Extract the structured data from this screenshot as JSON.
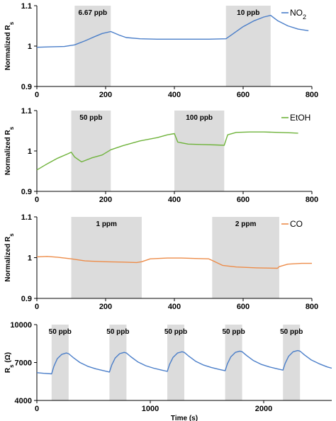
{
  "chart_data": [
    {
      "type": "line",
      "ylabel": "Normalized R",
      "ylabel_sub": "s",
      "xlim": [
        0,
        800
      ],
      "ylim": [
        0.9,
        1.1
      ],
      "xticks": [
        "0",
        "200",
        "400",
        "600",
        "800"
      ],
      "yticks": [
        "0.9",
        "1",
        "1.1"
      ],
      "legend": "NO",
      "legend_sub": "2",
      "legend_position": "top-right",
      "color": "#4a7ec9",
      "bands": [
        {
          "x0": 110,
          "x1": 215,
          "label": "6.67 ppb"
        },
        {
          "x0": 550,
          "x1": 680,
          "label": "10 ppb"
        }
      ],
      "series": [
        {
          "x": [
            0,
            40,
            80,
            110,
            140,
            170,
            190,
            215,
            240,
            260,
            300,
            350,
            400,
            450,
            500,
            550,
            570,
            600,
            630,
            660,
            680,
            700,
            730,
            760,
            790
          ],
          "y": [
            0.997,
            0.998,
            0.999,
            1.003,
            1.013,
            1.024,
            1.031,
            1.036,
            1.027,
            1.021,
            1.018,
            1.017,
            1.017,
            1.017,
            1.017,
            1.018,
            1.03,
            1.048,
            1.062,
            1.072,
            1.076,
            1.063,
            1.05,
            1.042,
            1.038
          ]
        }
      ]
    },
    {
      "type": "line",
      "ylabel": "Normalized R",
      "ylabel_sub": "s",
      "xlim": [
        0,
        800
      ],
      "ylim": [
        0.9,
        1.1
      ],
      "xticks": [
        "0",
        "200",
        "400",
        "600",
        "800"
      ],
      "yticks": [
        "0.9",
        "1",
        "1.1"
      ],
      "legend": "EtOH",
      "legend_sub": "",
      "legend_position": "top-right",
      "color": "#6fb33b",
      "bands": [
        {
          "x0": 100,
          "x1": 215,
          "label": "50 ppb"
        },
        {
          "x0": 400,
          "x1": 545,
          "label": "100 ppb"
        }
      ],
      "series": [
        {
          "x": [
            0,
            30,
            60,
            90,
            100,
            110,
            130,
            160,
            190,
            215,
            250,
            300,
            350,
            380,
            400,
            410,
            440,
            480,
            520,
            545,
            555,
            580,
            620,
            660,
            700,
            740,
            760
          ],
          "y": [
            0.953,
            0.968,
            0.982,
            0.993,
            0.997,
            0.985,
            0.973,
            0.983,
            0.99,
            1.003,
            1.013,
            1.025,
            1.033,
            1.04,
            1.043,
            1.022,
            1.017,
            1.016,
            1.015,
            1.014,
            1.04,
            1.046,
            1.047,
            1.047,
            1.046,
            1.045,
            1.044
          ]
        }
      ]
    },
    {
      "type": "line",
      "ylabel": "Normalized R",
      "ylabel_sub": "s",
      "xlim": [
        0,
        800
      ],
      "ylim": [
        0.9,
        1.1
      ],
      "xticks": [
        "0",
        "200",
        "400",
        "600",
        "800"
      ],
      "yticks": [
        "0.9",
        "1",
        "1.1"
      ],
      "legend": "CO",
      "legend_sub": "",
      "legend_position": "top-right",
      "color": "#ed8c49",
      "bands": [
        {
          "x0": 100,
          "x1": 305,
          "label": "1 ppm"
        },
        {
          "x0": 510,
          "x1": 705,
          "label": "2 ppm"
        }
      ],
      "series": [
        {
          "x": [
            0,
            30,
            60,
            100,
            140,
            200,
            250,
            290,
            305,
            330,
            380,
            420,
            460,
            500,
            510,
            540,
            580,
            640,
            700,
            705,
            730,
            770,
            800
          ],
          "y": [
            1.002,
            1.003,
            1.001,
            0.997,
            0.992,
            0.99,
            0.989,
            0.988,
            0.99,
            0.997,
            0.999,
            0.999,
            0.998,
            0.997,
            0.993,
            0.981,
            0.977,
            0.975,
            0.974,
            0.978,
            0.984,
            0.986,
            0.986
          ]
        }
      ]
    },
    {
      "type": "line",
      "ylabel": "R",
      "ylabel_sub": "s",
      "ylabel_suffix": " (Ω)",
      "xlabel": "Time (s)",
      "xlim": [
        0,
        2600
      ],
      "ylim": [
        4000,
        10000
      ],
      "xticks": [
        "0",
        "1000",
        "2000"
      ],
      "yticks": [
        "4000",
        "7000",
        "10000"
      ],
      "legend": "",
      "legend_sub": "",
      "color": "#4a7ec9",
      "bands": [
        {
          "x0": 130,
          "x1": 280,
          "label": "50 ppb"
        },
        {
          "x0": 640,
          "x1": 790,
          "label": "50 ppb"
        },
        {
          "x0": 1150,
          "x1": 1300,
          "label": "50 ppb"
        },
        {
          "x0": 1660,
          "x1": 1810,
          "label": "50 ppb"
        },
        {
          "x0": 2170,
          "x1": 2320,
          "label": "50 ppb"
        }
      ],
      "series": [
        {
          "x": [
            0,
            60,
            130,
            150,
            180,
            220,
            260,
            280,
            320,
            380,
            450,
            520,
            590,
            640,
            660,
            690,
            730,
            770,
            790,
            830,
            890,
            960,
            1030,
            1100,
            1150,
            1170,
            1200,
            1240,
            1280,
            1300,
            1340,
            1400,
            1470,
            1540,
            1610,
            1660,
            1680,
            1710,
            1750,
            1790,
            1810,
            1850,
            1910,
            1980,
            2050,
            2120,
            2170,
            2190,
            2220,
            2260,
            2300,
            2320,
            2360,
            2420,
            2490,
            2560,
            2600
          ],
          "y": [
            6200,
            6150,
            6100,
            6700,
            7300,
            7650,
            7750,
            7700,
            7400,
            7000,
            6700,
            6500,
            6350,
            6250,
            6800,
            7350,
            7700,
            7800,
            7750,
            7450,
            7050,
            6750,
            6550,
            6400,
            6300,
            6850,
            7400,
            7750,
            7850,
            7800,
            7500,
            7100,
            6800,
            6600,
            6450,
            6350,
            6900,
            7450,
            7800,
            7900,
            7850,
            7550,
            7150,
            6850,
            6650,
            6500,
            6400,
            6950,
            7500,
            7850,
            7950,
            7900,
            7600,
            7200,
            6900,
            6650,
            6550
          ]
        }
      ]
    }
  ]
}
